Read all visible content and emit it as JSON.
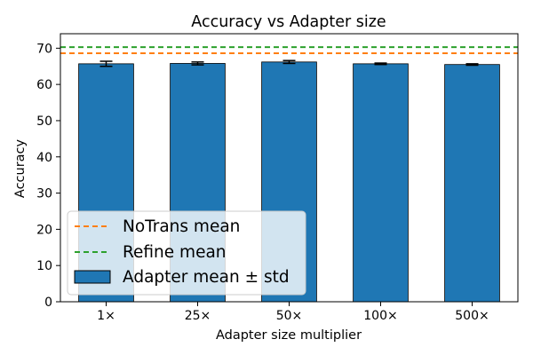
{
  "chart_data": {
    "type": "bar",
    "title": "Accuracy vs Adapter size",
    "xlabel": "Adapter size multiplier",
    "ylabel": "Accuracy",
    "ylim": [
      0,
      74
    ],
    "yticks": [
      0,
      10,
      20,
      30,
      40,
      50,
      60,
      70
    ],
    "categories": [
      "1×",
      "25×",
      "50×",
      "100×",
      "500×"
    ],
    "series": [
      {
        "name": "Adapter mean ± std",
        "values": [
          65.7,
          65.8,
          66.2,
          65.7,
          65.5
        ],
        "errors": [
          0.7,
          0.4,
          0.4,
          0.2,
          0.2
        ],
        "color": "#1f77b4"
      }
    ],
    "reference_lines": [
      {
        "name": "NoTrans mean",
        "value": 68.6,
        "color": "#ff7f0e"
      },
      {
        "name": "Refine mean",
        "value": 70.3,
        "color": "#2ca02c"
      }
    ],
    "grid": false,
    "legend_position": "lower-left",
    "legend": [
      "NoTrans mean",
      "Refine mean",
      "Adapter mean ± std"
    ]
  }
}
